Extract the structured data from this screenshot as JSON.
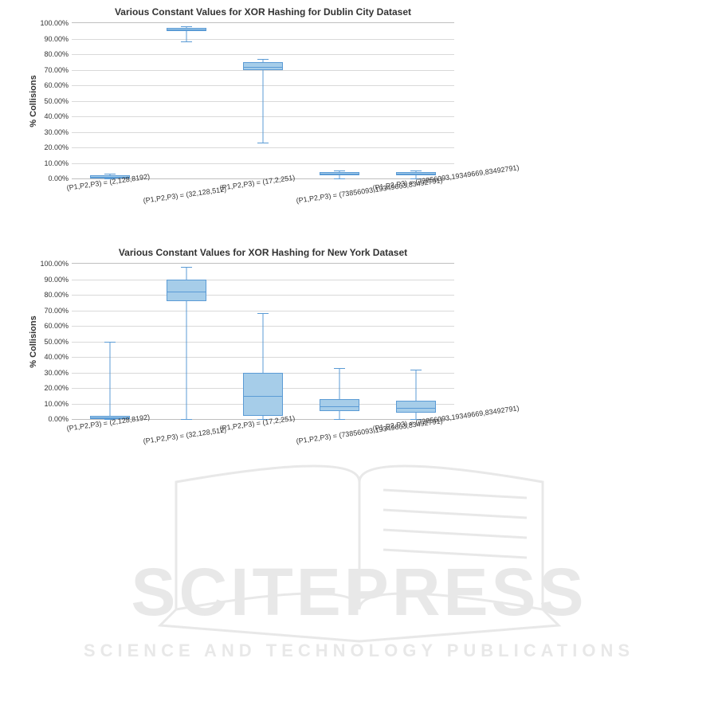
{
  "chart1": {
    "type": "boxplot",
    "title": "Various Constant Values for XOR Hashing for Dublin City Dataset",
    "ylabel": "% Collisions",
    "ylim": [
      0,
      100
    ],
    "ytick_step": 10,
    "ytick_format_suffix": ".00%",
    "gridline_color": "#d9d9d9",
    "border_color": "#bfbfbf",
    "box_fill_color": "#a6cde9",
    "box_border_color": "#5b9bd5",
    "whisker_color": "#5b9bd5",
    "title_fontsize": 12,
    "label_fontsize": 11,
    "tick_fontsize": 9,
    "categories": [
      "(P1,P2,P3) = (2,128,8192)",
      "(P1,P2,P3) = (32,128,512)",
      "(P1,P2,P3) = (17,2,251)",
      "(P1,P2,P3) = (73856093,19349663,83492791)",
      "(P1,P2,P3) = (73856093,19349669,83492791)"
    ],
    "boxes": [
      {
        "low": 0,
        "q1": 0,
        "median": 1,
        "q3": 2,
        "high": 3
      },
      {
        "low": 88,
        "q1": 95,
        "median": 96,
        "q3": 97,
        "high": 98
      },
      {
        "low": 23,
        "q1": 70,
        "median": 72,
        "q3": 75,
        "high": 77
      },
      {
        "low": 0,
        "q1": 2,
        "median": 3,
        "q3": 4,
        "high": 5
      },
      {
        "low": 0,
        "q1": 2,
        "median": 3,
        "q3": 4,
        "high": 5
      }
    ]
  },
  "chart2": {
    "type": "boxplot",
    "title": "Various Constant Values for XOR Hashing for New York Dataset",
    "ylabel": "% Collisions",
    "ylim": [
      0,
      100
    ],
    "ytick_step": 10,
    "ytick_format_suffix": ".00%",
    "gridline_color": "#d9d9d9",
    "border_color": "#bfbfbf",
    "box_fill_color": "#a6cde9",
    "box_border_color": "#5b9bd5",
    "whisker_color": "#5b9bd5",
    "title_fontsize": 12,
    "label_fontsize": 11,
    "tick_fontsize": 9,
    "categories": [
      "(P1,P2,P3) = (2,128,8192)",
      "(P1,P2,P3) = (32,128,512)",
      "(P1,P2,P3) = (17,2,251)",
      "(P1,P2,P3) = (73856093,19349663,83492791)",
      "(P1,P2,P3) = (73856093,19349669,83492791)"
    ],
    "boxes": [
      {
        "low": 0,
        "q1": 0,
        "median": 1,
        "q3": 2,
        "high": 50
      },
      {
        "low": 0,
        "q1": 76,
        "median": 82,
        "q3": 90,
        "high": 98
      },
      {
        "low": 0,
        "q1": 2,
        "median": 15,
        "q3": 30,
        "high": 68
      },
      {
        "low": 0,
        "q1": 5,
        "median": 8,
        "q3": 13,
        "high": 33
      },
      {
        "low": 0,
        "q1": 4,
        "median": 7,
        "q3": 12,
        "high": 32
      }
    ]
  },
  "watermark": {
    "logo_text": "SCITEPRESS",
    "tagline": "SCIENCE AND TECHNOLOGY PUBLICATIONS",
    "color": "#808080"
  }
}
